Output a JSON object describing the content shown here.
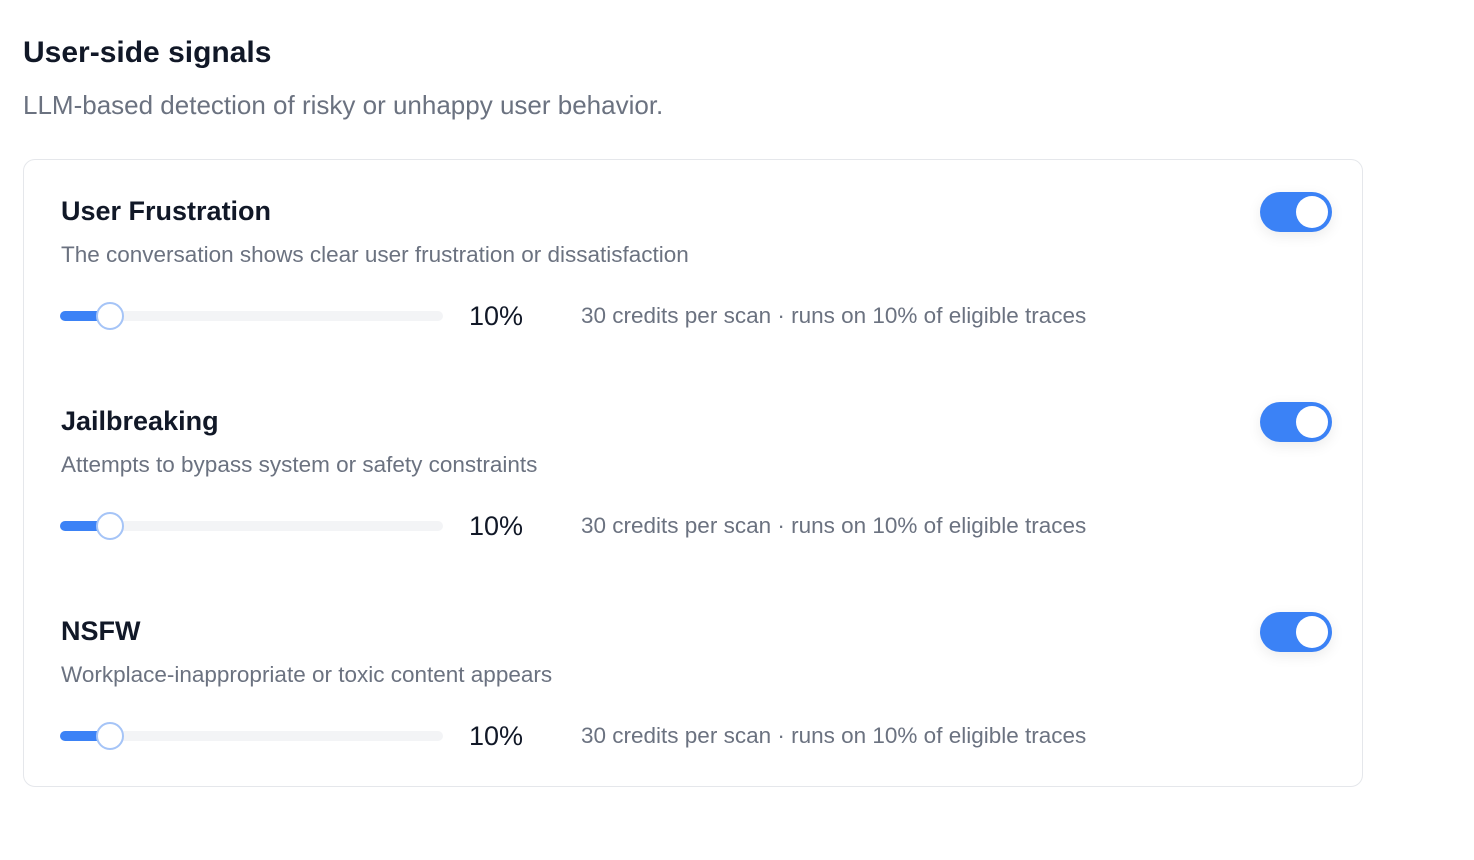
{
  "header": {
    "title": "User-side signals",
    "subtitle": "LLM-based detection of risky or unhappy user behavior."
  },
  "slider_range": [
    0,
    100
  ],
  "signals": [
    {
      "name": "User Frustration",
      "description": "The conversation shows clear user frustration or dissatisfaction",
      "enabled": true,
      "rate": {
        "value": 10,
        "label": "10%"
      },
      "info": "30 credits per scan · runs on 10% of eligible traces"
    },
    {
      "name": "Jailbreaking",
      "description": "Attempts to bypass system or safety constraints",
      "enabled": true,
      "rate": {
        "value": 10,
        "label": "10%"
      },
      "info": "30 credits per scan · runs on 10% of eligible traces"
    },
    {
      "name": "NSFW",
      "description": "Workplace-inappropriate or toxic content appears",
      "enabled": true,
      "rate": {
        "value": 10,
        "label": "10%"
      },
      "info": "30 credits per scan · runs on 10% of eligible traces"
    }
  ]
}
